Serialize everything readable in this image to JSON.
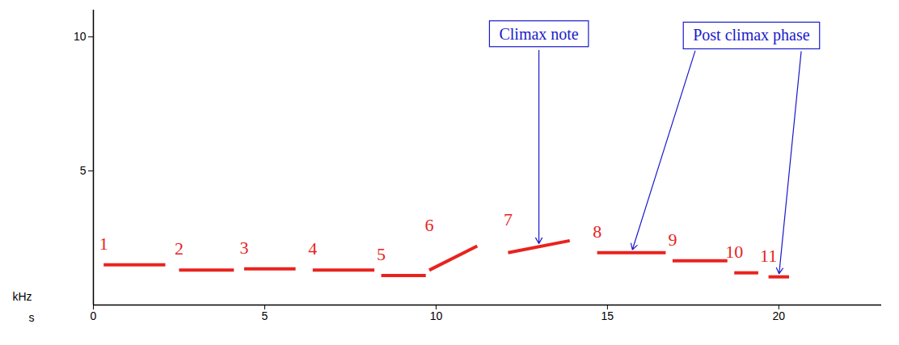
{
  "chart_data": {
    "type": "segments",
    "x_label": "s",
    "y_label": "kHz",
    "xlim": [
      0,
      23
    ],
    "ylim": [
      0,
      11
    ],
    "xticks": [
      0,
      5,
      10,
      15,
      20
    ],
    "yticks": [
      5,
      10
    ],
    "color": "#e8231e",
    "segments": [
      {
        "label": "1",
        "x": [
          0.3,
          2.1
        ],
        "y": [
          1.5,
          1.5
        ]
      },
      {
        "label": "2",
        "x": [
          2.5,
          4.1
        ],
        "y": [
          1.3,
          1.3
        ]
      },
      {
        "label": "3",
        "x": [
          4.4,
          5.9
        ],
        "y": [
          1.35,
          1.35
        ]
      },
      {
        "label": "4",
        "x": [
          6.4,
          8.2
        ],
        "y": [
          1.3,
          1.3
        ]
      },
      {
        "label": "5",
        "x": [
          8.4,
          9.7
        ],
        "y": [
          1.1,
          1.1
        ]
      },
      {
        "label": "6",
        "x": [
          9.8,
          11.2
        ],
        "y": [
          1.3,
          2.2
        ]
      },
      {
        "label": "7",
        "x": [
          12.1,
          13.9
        ],
        "y": [
          1.95,
          2.4
        ]
      },
      {
        "label": "8",
        "x": [
          14.7,
          16.7
        ],
        "y": [
          1.95,
          1.95
        ]
      },
      {
        "label": "9",
        "x": [
          16.9,
          18.5
        ],
        "y": [
          1.65,
          1.65
        ]
      },
      {
        "label": "10",
        "x": [
          18.7,
          19.4
        ],
        "y": [
          1.2,
          1.2
        ]
      },
      {
        "label": "11",
        "x": [
          19.7,
          20.3
        ],
        "y": [
          1.05,
          1.05
        ]
      }
    ],
    "annotations": [
      {
        "text": "Climax note",
        "x": 13,
        "y": 10.1,
        "points_to": [
          "7"
        ]
      },
      {
        "text": "Post climax phase",
        "x": 19.2,
        "y": 10.05,
        "points_to": [
          "8",
          "11"
        ]
      }
    ]
  }
}
